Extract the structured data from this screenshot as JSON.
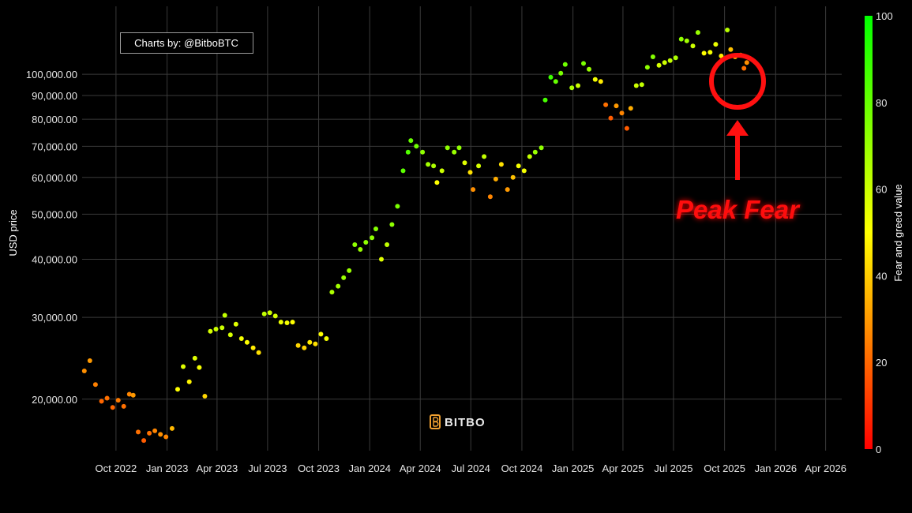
{
  "watermark": {
    "credit": "Charts by: @BitboBTC",
    "logo_text": "BITBO"
  },
  "annotation": {
    "text": "Peak Fear",
    "color": "#ff1010"
  },
  "colorbar": {
    "title": "Fear and greed value",
    "range": [
      0,
      100
    ],
    "ticks": [
      "0",
      "20",
      "40",
      "60",
      "80",
      "100"
    ],
    "colors": {
      "low": "#ff0000",
      "mid": "#ffff00",
      "high": "#00ff00"
    }
  },
  "chart_data": {
    "type": "scatter",
    "ylabel": "USD price",
    "y_scale": "log",
    "ylim": [
      15500,
      140000
    ],
    "xlim": [
      "2022-08-01",
      "2026-04-30"
    ],
    "x_ticks": [
      {
        "date": "2022-10-01",
        "label": "Oct 2022"
      },
      {
        "date": "2023-01-01",
        "label": "Jan 2023"
      },
      {
        "date": "2023-04-01",
        "label": "Apr 2023"
      },
      {
        "date": "2023-07-01",
        "label": "Jul 2023"
      },
      {
        "date": "2023-10-01",
        "label": "Oct 2023"
      },
      {
        "date": "2024-01-01",
        "label": "Jan 2024"
      },
      {
        "date": "2024-04-01",
        "label": "Apr 2024"
      },
      {
        "date": "2024-07-01",
        "label": "Jul 2024"
      },
      {
        "date": "2024-10-01",
        "label": "Oct 2024"
      },
      {
        "date": "2025-01-01",
        "label": "Jan 2025"
      },
      {
        "date": "2025-04-01",
        "label": "Apr 2025"
      },
      {
        "date": "2025-07-01",
        "label": "Jul 2025"
      },
      {
        "date": "2025-10-01",
        "label": "Oct 2025"
      },
      {
        "date": "2026-01-01",
        "label": "Jan 2026"
      },
      {
        "date": "2026-04-01",
        "label": "Apr 2026"
      }
    ],
    "y_ticks": [
      {
        "value": 20000,
        "label": "20,000.00"
      },
      {
        "value": 30000,
        "label": "30,000.00"
      },
      {
        "value": 40000,
        "label": "40,000.00"
      },
      {
        "value": 50000,
        "label": "50,000.00"
      },
      {
        "value": 60000,
        "label": "60,000.00"
      },
      {
        "value": 70000,
        "label": "70,000.00"
      },
      {
        "value": 80000,
        "label": "80,000.00"
      },
      {
        "value": 90000,
        "label": "90,000.00"
      },
      {
        "value": 100000,
        "label": "100,000.00"
      }
    ],
    "grid": true,
    "colorbar_position": "right",
    "points": [
      [
        "2022-08-05",
        23000,
        28
      ],
      [
        "2022-08-15",
        24200,
        30
      ],
      [
        "2022-08-25",
        21500,
        25
      ],
      [
        "2022-09-05",
        19800,
        20
      ],
      [
        "2022-09-15",
        20100,
        22
      ],
      [
        "2022-09-25",
        19200,
        20
      ],
      [
        "2022-10-05",
        19900,
        24
      ],
      [
        "2022-10-15",
        19300,
        22
      ],
      [
        "2022-10-25",
        20500,
        26
      ],
      [
        "2022-11-01",
        20400,
        30
      ],
      [
        "2022-11-10",
        17000,
        22
      ],
      [
        "2022-11-20",
        16300,
        18
      ],
      [
        "2022-11-30",
        16900,
        22
      ],
      [
        "2022-12-10",
        17100,
        26
      ],
      [
        "2022-12-20",
        16800,
        28
      ],
      [
        "2022-12-30",
        16600,
        26
      ],
      [
        "2023-01-10",
        17300,
        36
      ],
      [
        "2023-01-20",
        21000,
        50
      ],
      [
        "2023-01-30",
        23500,
        56
      ],
      [
        "2023-02-10",
        21800,
        48
      ],
      [
        "2023-02-20",
        24500,
        56
      ],
      [
        "2023-02-28",
        23400,
        52
      ],
      [
        "2023-03-10",
        20300,
        42
      ],
      [
        "2023-03-20",
        28000,
        58
      ],
      [
        "2023-03-30",
        28300,
        60
      ],
      [
        "2023-04-10",
        28500,
        60
      ],
      [
        "2023-04-15",
        30300,
        62
      ],
      [
        "2023-04-25",
        27500,
        58
      ],
      [
        "2023-05-05",
        29000,
        56
      ],
      [
        "2023-05-15",
        27000,
        52
      ],
      [
        "2023-05-25",
        26500,
        50
      ],
      [
        "2023-06-05",
        25800,
        46
      ],
      [
        "2023-06-15",
        25200,
        44
      ],
      [
        "2023-06-25",
        30500,
        62
      ],
      [
        "2023-07-05",
        30700,
        60
      ],
      [
        "2023-07-15",
        30200,
        58
      ],
      [
        "2023-07-25",
        29300,
        54
      ],
      [
        "2023-08-05",
        29200,
        52
      ],
      [
        "2023-08-15",
        29300,
        50
      ],
      [
        "2023-08-25",
        26100,
        42
      ],
      [
        "2023-09-05",
        25800,
        42
      ],
      [
        "2023-09-15",
        26500,
        46
      ],
      [
        "2023-09-25",
        26300,
        44
      ],
      [
        "2023-10-05",
        27600,
        50
      ],
      [
        "2023-10-15",
        27000,
        52
      ],
      [
        "2023-10-25",
        34000,
        66
      ],
      [
        "2023-11-05",
        35000,
        68
      ],
      [
        "2023-11-15",
        36500,
        70
      ],
      [
        "2023-11-25",
        37800,
        70
      ],
      [
        "2023-12-05",
        43000,
        72
      ],
      [
        "2023-12-15",
        42000,
        70
      ],
      [
        "2023-12-25",
        43500,
        72
      ],
      [
        "2024-01-05",
        44500,
        72
      ],
      [
        "2024-01-12",
        46500,
        74
      ],
      [
        "2024-01-22",
        40000,
        56
      ],
      [
        "2024-02-01",
        43000,
        62
      ],
      [
        "2024-02-10",
        47500,
        72
      ],
      [
        "2024-02-20",
        52000,
        76
      ],
      [
        "2024-03-01",
        62000,
        82
      ],
      [
        "2024-03-10",
        68000,
        84
      ],
      [
        "2024-03-15",
        72000,
        80
      ],
      [
        "2024-03-25",
        70000,
        78
      ],
      [
        "2024-04-05",
        68000,
        72
      ],
      [
        "2024-04-15",
        64000,
        68
      ],
      [
        "2024-04-25",
        63500,
        66
      ],
      [
        "2024-05-01",
        58500,
        50
      ],
      [
        "2024-05-10",
        62000,
        60
      ],
      [
        "2024-05-20",
        69500,
        72
      ],
      [
        "2024-06-01",
        68000,
        70
      ],
      [
        "2024-06-10",
        69500,
        72
      ],
      [
        "2024-06-20",
        64500,
        56
      ],
      [
        "2024-06-30",
        61500,
        44
      ],
      [
        "2024-07-05",
        56500,
        28
      ],
      [
        "2024-07-15",
        63500,
        58
      ],
      [
        "2024-07-25",
        66500,
        62
      ],
      [
        "2024-08-05",
        54500,
        26
      ],
      [
        "2024-08-15",
        59500,
        34
      ],
      [
        "2024-08-25",
        64000,
        44
      ],
      [
        "2024-09-05",
        56500,
        30
      ],
      [
        "2024-09-15",
        60000,
        38
      ],
      [
        "2024-09-25",
        63500,
        52
      ],
      [
        "2024-10-05",
        62000,
        52
      ],
      [
        "2024-10-15",
        66500,
        62
      ],
      [
        "2024-10-25",
        68000,
        70
      ],
      [
        "2024-11-05",
        69500,
        72
      ],
      [
        "2024-11-12",
        88000,
        86
      ],
      [
        "2024-11-22",
        98500,
        88
      ],
      [
        "2024-12-01",
        96500,
        80
      ],
      [
        "2024-12-10",
        100500,
        76
      ],
      [
        "2024-12-18",
        105000,
        78
      ],
      [
        "2024-12-30",
        93500,
        66
      ],
      [
        "2025-01-10",
        94500,
        60
      ],
      [
        "2025-01-20",
        105500,
        76
      ],
      [
        "2025-01-30",
        102500,
        70
      ],
      [
        "2025-02-10",
        97500,
        52
      ],
      [
        "2025-02-20",
        96500,
        46
      ],
      [
        "2025-03-01",
        86000,
        22
      ],
      [
        "2025-03-10",
        80500,
        18
      ],
      [
        "2025-03-20",
        85500,
        30
      ],
      [
        "2025-03-30",
        82500,
        26
      ],
      [
        "2025-04-08",
        76500,
        18
      ],
      [
        "2025-04-15",
        84500,
        34
      ],
      [
        "2025-04-25",
        94500,
        60
      ],
      [
        "2025-05-05",
        95000,
        62
      ],
      [
        "2025-05-15",
        103500,
        72
      ],
      [
        "2025-05-25",
        109000,
        74
      ],
      [
        "2025-06-05",
        104500,
        58
      ],
      [
        "2025-06-15",
        106000,
        60
      ],
      [
        "2025-06-25",
        107000,
        62
      ],
      [
        "2025-07-05",
        108500,
        66
      ],
      [
        "2025-07-15",
        119000,
        72
      ],
      [
        "2025-07-25",
        118000,
        68
      ],
      [
        "2025-08-05",
        115000,
        60
      ],
      [
        "2025-08-14",
        123000,
        70
      ],
      [
        "2025-08-25",
        111000,
        50
      ],
      [
        "2025-09-05",
        111500,
        52
      ],
      [
        "2025-09-15",
        116000,
        54
      ],
      [
        "2025-09-25",
        109500,
        46
      ],
      [
        "2025-10-06",
        124500,
        64
      ],
      [
        "2025-10-12",
        113000,
        38
      ],
      [
        "2025-10-20",
        109000,
        32
      ],
      [
        "2025-10-30",
        110000,
        36
      ],
      [
        "2025-11-05",
        103000,
        22
      ],
      [
        "2025-11-10",
        106000,
        28
      ]
    ]
  }
}
